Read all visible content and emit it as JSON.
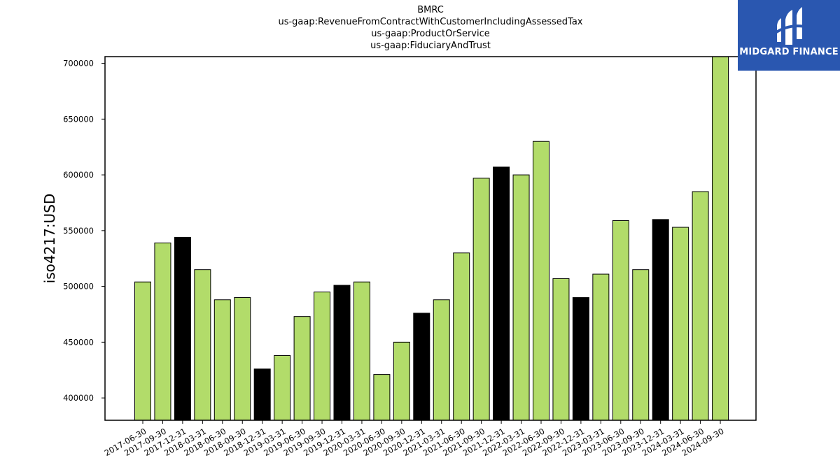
{
  "chart_data": {
    "type": "bar",
    "title_lines": [
      "BMRC",
      "us-gaap:RevenueFromContractWithCustomerIncludingAssessedTax",
      "us-gaap:ProductOrService",
      "us-gaap:FiduciaryAndTrust"
    ],
    "xlabel": "",
    "ylabel": "iso4217:USD",
    "ylim": [
      380000,
      706000
    ],
    "yticks": [
      400000,
      450000,
      500000,
      550000,
      600000,
      650000,
      700000
    ],
    "grid": false,
    "legend": "none",
    "categories": [
      "2017-06-30",
      "2017-09-30",
      "2017-12-31",
      "2018-03-31",
      "2018-06-30",
      "2018-09-30",
      "2018-12-31",
      "2019-03-31",
      "2019-06-30",
      "2019-09-30",
      "2019-12-31",
      "2020-03-31",
      "2020-06-30",
      "2020-09-30",
      "2020-12-31",
      "2021-03-31",
      "2021-06-30",
      "2021-09-30",
      "2021-12-31",
      "2022-03-31",
      "2022-06-30",
      "2022-09-30",
      "2022-12-31",
      "2023-03-31",
      "2023-06-30",
      "2023-09-30",
      "2023-12-31",
      "2024-03-31",
      "2024-06-30",
      "2024-09-30"
    ],
    "values": [
      504000,
      539000,
      544000,
      515000,
      488000,
      490000,
      426000,
      438000,
      473000,
      495000,
      501000,
      504000,
      421000,
      450000,
      476000,
      488000,
      530000,
      597000,
      607000,
      600000,
      630000,
      507000,
      490000,
      511000,
      559000,
      515000,
      560000,
      553000,
      585000,
      706000
    ],
    "highlight_categories": [
      "2017-12-31",
      "2018-12-31",
      "2019-12-31",
      "2020-12-31",
      "2021-12-31",
      "2022-12-31",
      "2023-12-31"
    ],
    "colors": {
      "bar": "#b2dc6a",
      "highlight": "#000000",
      "edge": "#000000"
    }
  },
  "logo": {
    "text": "MIDGARD FINANCE",
    "bg": "#2a57b0"
  }
}
